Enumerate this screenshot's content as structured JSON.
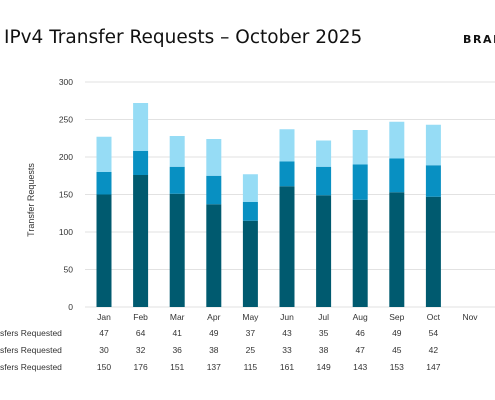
{
  "header": {
    "title": "IPv4 Transfer Requests – October 2025",
    "brand": "BRAN"
  },
  "colors": {
    "bottom": "#005a6f",
    "middle": "#0890c2",
    "top": "#96dcf5",
    "grid": "#e2e2e2",
    "text": "#333333"
  },
  "chart_data": {
    "type": "bar",
    "stacked": true,
    "title": "IPv4 Transfer Requests – October 2025",
    "ylabel": "Transfer Requests",
    "xlabel": "",
    "ylim": [
      0,
      300
    ],
    "yticks": [
      0,
      50,
      100,
      150,
      200,
      250,
      300
    ],
    "grid": true,
    "categories": [
      "Jan",
      "Feb",
      "Mar",
      "Apr",
      "May",
      "Jun",
      "Jul",
      "Aug",
      "Sep",
      "Oct",
      "Nov"
    ],
    "series": [
      {
        "name": "sfers Requested",
        "values": [
          150,
          176,
          151,
          137,
          115,
          161,
          149,
          143,
          153,
          147,
          null
        ]
      },
      {
        "name": "sfers Requested",
        "values": [
          30,
          32,
          36,
          38,
          25,
          33,
          38,
          47,
          45,
          42,
          null
        ]
      },
      {
        "name": "sfers Requested",
        "values": [
          47,
          64,
          41,
          49,
          37,
          43,
          35,
          46,
          49,
          54,
          null
        ]
      }
    ],
    "table_rows_order": [
      2,
      1,
      0
    ]
  }
}
